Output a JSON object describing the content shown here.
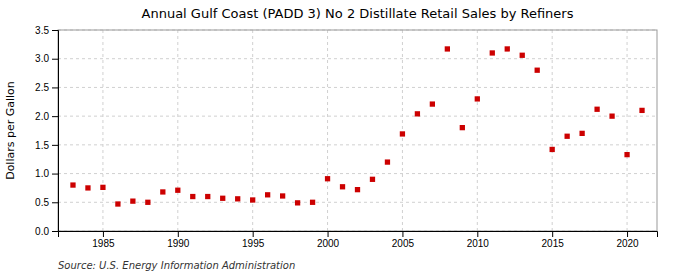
{
  "chart_data": {
    "type": "scatter",
    "title": "Annual Gulf Coast (PADD 3) No 2 Distillate Retail Sales by Refiners",
    "ylabel": "Dollars per Gallon",
    "annotations": [
      "Source: U.S. Energy Information Administration"
    ],
    "x": [
      1983,
      1984,
      1985,
      1986,
      1987,
      1988,
      1989,
      1990,
      1991,
      1992,
      1993,
      1994,
      1995,
      1996,
      1997,
      1998,
      1999,
      2000,
      2001,
      2002,
      2003,
      2004,
      2005,
      2006,
      2007,
      2008,
      2009,
      2010,
      2011,
      2012,
      2013,
      2014,
      2015,
      2016,
      2017,
      2018,
      2019,
      2020,
      2021
    ],
    "values": [
      0.8,
      0.75,
      0.76,
      0.47,
      0.52,
      0.5,
      0.68,
      0.71,
      0.6,
      0.6,
      0.57,
      0.56,
      0.54,
      0.63,
      0.61,
      0.49,
      0.5,
      0.91,
      0.77,
      0.72,
      0.9,
      1.2,
      1.69,
      2.04,
      2.21,
      3.17,
      1.8,
      2.3,
      3.1,
      3.17,
      3.06,
      2.8,
      1.42,
      1.65,
      1.7,
      2.12,
      2.0,
      1.33,
      2.1
    ],
    "color": "#cc0000",
    "marker": "square",
    "xlim": [
      1982,
      2022
    ],
    "xticks": [
      1985,
      1990,
      1995,
      2000,
      2005,
      2010,
      2015,
      2020
    ],
    "ylim": [
      0.0,
      3.5
    ],
    "yticks": [
      {
        "value": 0.0,
        "label": "0.0"
      },
      0.5,
      {
        "value": 1.0,
        "label": "1.0"
      },
      1.5,
      {
        "value": 2.0,
        "label": "2.0"
      },
      2.5,
      {
        "value": 3.0,
        "label": "3.0"
      },
      3.5
    ],
    "grid": true
  }
}
